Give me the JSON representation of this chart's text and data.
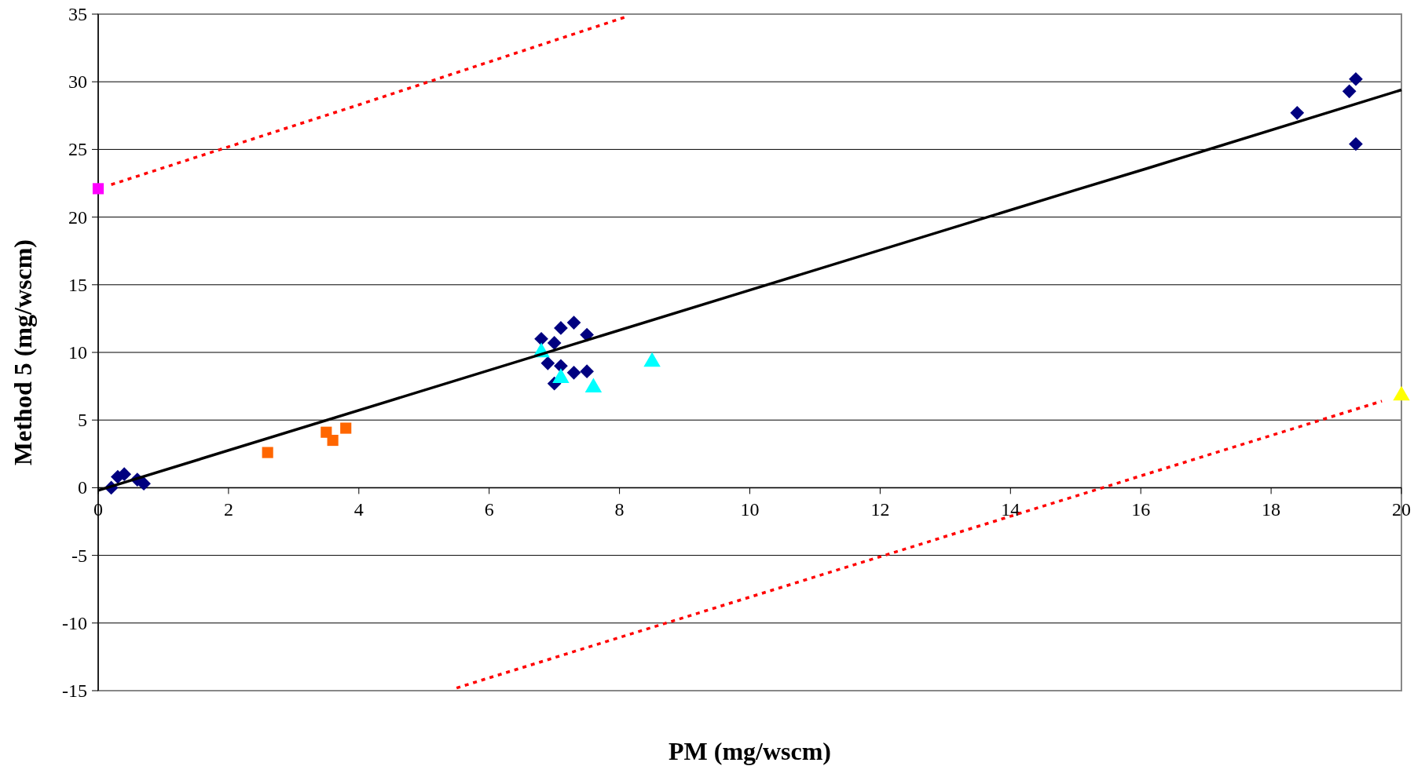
{
  "chart_data": {
    "type": "scatter",
    "xlabel": "PM (mg/wscm)",
    "ylabel": "Method 5 (mg/wscm)",
    "xlim": [
      0,
      20
    ],
    "xticks": [
      0,
      2,
      4,
      6,
      8,
      10,
      12,
      14,
      16,
      18,
      20
    ],
    "ylim": [
      -15,
      35
    ],
    "yticks": [
      -15,
      -10,
      -5,
      0,
      5,
      10,
      15,
      20,
      25,
      30,
      35
    ],
    "grid": "y",
    "series": [
      {
        "color": "#000080",
        "marker": "diamond",
        "x": [
          0.2,
          0.3,
          0.4,
          0.6,
          0.7,
          6.8,
          7.0,
          7.1,
          7.3,
          7.5,
          6.9,
          7.1,
          7.3,
          7.5,
          7.0,
          18.4,
          19.2,
          19.3,
          19.3
        ],
        "values": [
          0,
          0.8,
          1.0,
          0.6,
          0.3,
          11.0,
          10.7,
          11.8,
          12.2,
          11.3,
          9.2,
          9.0,
          8.5,
          8.6,
          7.7,
          27.7,
          29.3,
          30.2,
          25.4
        ]
      },
      {
        "color": "#ff6600",
        "marker": "square",
        "x": [
          2.6,
          3.5,
          3.6,
          3.8
        ],
        "values": [
          2.6,
          4.1,
          3.5,
          4.4
        ]
      },
      {
        "color": "#00ffff",
        "marker": "triangle",
        "x": [
          6.8,
          7.1,
          7.6,
          8.5
        ],
        "values": [
          10.0,
          8.1,
          7.4,
          9.3
        ]
      },
      {
        "type": "line",
        "color": "#000000",
        "marker": "none",
        "line_style": "solid",
        "x": [
          0,
          10,
          15,
          16.1,
          20
        ],
        "values": [
          -0.2,
          14.6,
          22.0,
          23.6,
          29.4
        ]
      },
      {
        "type": "line",
        "color": "#ff0000",
        "marker": "none",
        "line_style": "dotted",
        "x": [
          0.2,
          4,
          8.1
        ],
        "values": [
          22.4,
          28.3,
          34.8
        ]
      },
      {
        "type": "line",
        "color": "#ff0000",
        "marker": "none",
        "line_style": "dotted",
        "x": [
          5.5,
          12,
          19.7
        ],
        "values": [
          -14.8,
          -5.1,
          6.4
        ]
      },
      {
        "color": "#ff00ff",
        "marker": "square",
        "x": [
          0
        ],
        "values": [
          22.1
        ]
      },
      {
        "color": "#ffff00",
        "marker": "triangle",
        "x": [
          20
        ],
        "values": [
          6.8
        ]
      }
    ]
  }
}
